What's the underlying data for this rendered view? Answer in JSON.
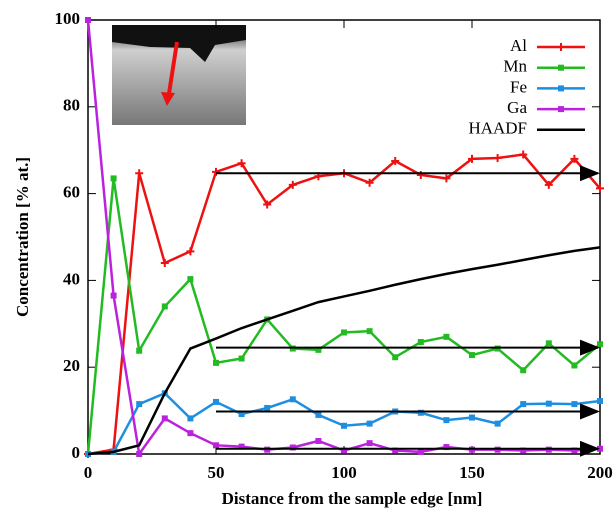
{
  "chart_data": {
    "type": "line",
    "xlabel": "Distance from the sample edge [nm]",
    "ylabel": "Concentration [% at.]",
    "x": [
      0,
      10,
      20,
      30,
      40,
      50,
      60,
      70,
      80,
      90,
      100,
      110,
      120,
      130,
      140,
      150,
      160,
      170,
      180,
      190,
      200
    ],
    "series": [
      {
        "name": "Al",
        "color": "#ee1111",
        "marker": "plus",
        "values": [
          0,
          1,
          64.7,
          44,
          46.7,
          65,
          67,
          57.5,
          62,
          64,
          64.7,
          62.5,
          67.5,
          64.3,
          63.5,
          68,
          68.2,
          69,
          62,
          68,
          61.2
        ]
      },
      {
        "name": "Mn",
        "color": "#22bb22",
        "marker": "square",
        "values": [
          0,
          63.5,
          23.8,
          34,
          40.3,
          21,
          22,
          31,
          24.3,
          24,
          28,
          28.3,
          22.3,
          25.8,
          27,
          22.8,
          24.3,
          19.3,
          25.5,
          20.4,
          25.3
        ]
      },
      {
        "name": "Fe",
        "color": "#1e8fe0",
        "marker": "square",
        "values": [
          0,
          0.5,
          11.5,
          14,
          8.2,
          12,
          9.2,
          10.6,
          12.6,
          9,
          6.5,
          7,
          9.8,
          9.5,
          7.8,
          8.4,
          7,
          11.5,
          11.6,
          11.5,
          12.2
        ]
      },
      {
        "name": "Ga",
        "color": "#bb22dd",
        "marker": "square",
        "values": [
          100,
          36.5,
          0,
          8.2,
          4.8,
          2,
          1.7,
          1,
          1.5,
          3,
          0.8,
          2.5,
          0.8,
          0.5,
          1.6,
          1,
          1,
          0.8,
          1,
          0.8,
          1.2
        ]
      },
      {
        "name": "HAADF",
        "color": "#000000",
        "marker": "none",
        "values": [
          0,
          0.5,
          2,
          14,
          24.3,
          26.6,
          29,
          31,
          33,
          35,
          36.3,
          37.6,
          39,
          40.3,
          41.5,
          42.6,
          43.6,
          44.7,
          45.8,
          46.8,
          47.6
        ]
      }
    ],
    "arrows": [
      {
        "y": 64.7,
        "x": [
          50,
          200
        ]
      },
      {
        "y": 24.5,
        "x": [
          50,
          200
        ]
      },
      {
        "y": 9.8,
        "x": [
          50,
          200
        ]
      },
      {
        "y": 1.2,
        "x": [
          50,
          200
        ]
      }
    ],
    "xlim": [
      0,
      200
    ],
    "xticks": [
      0,
      50,
      100,
      150,
      200
    ],
    "ylim": [
      0,
      100
    ],
    "yticks": [
      0,
      20,
      40,
      60,
      80,
      100
    ],
    "legend": "upper right"
  }
}
